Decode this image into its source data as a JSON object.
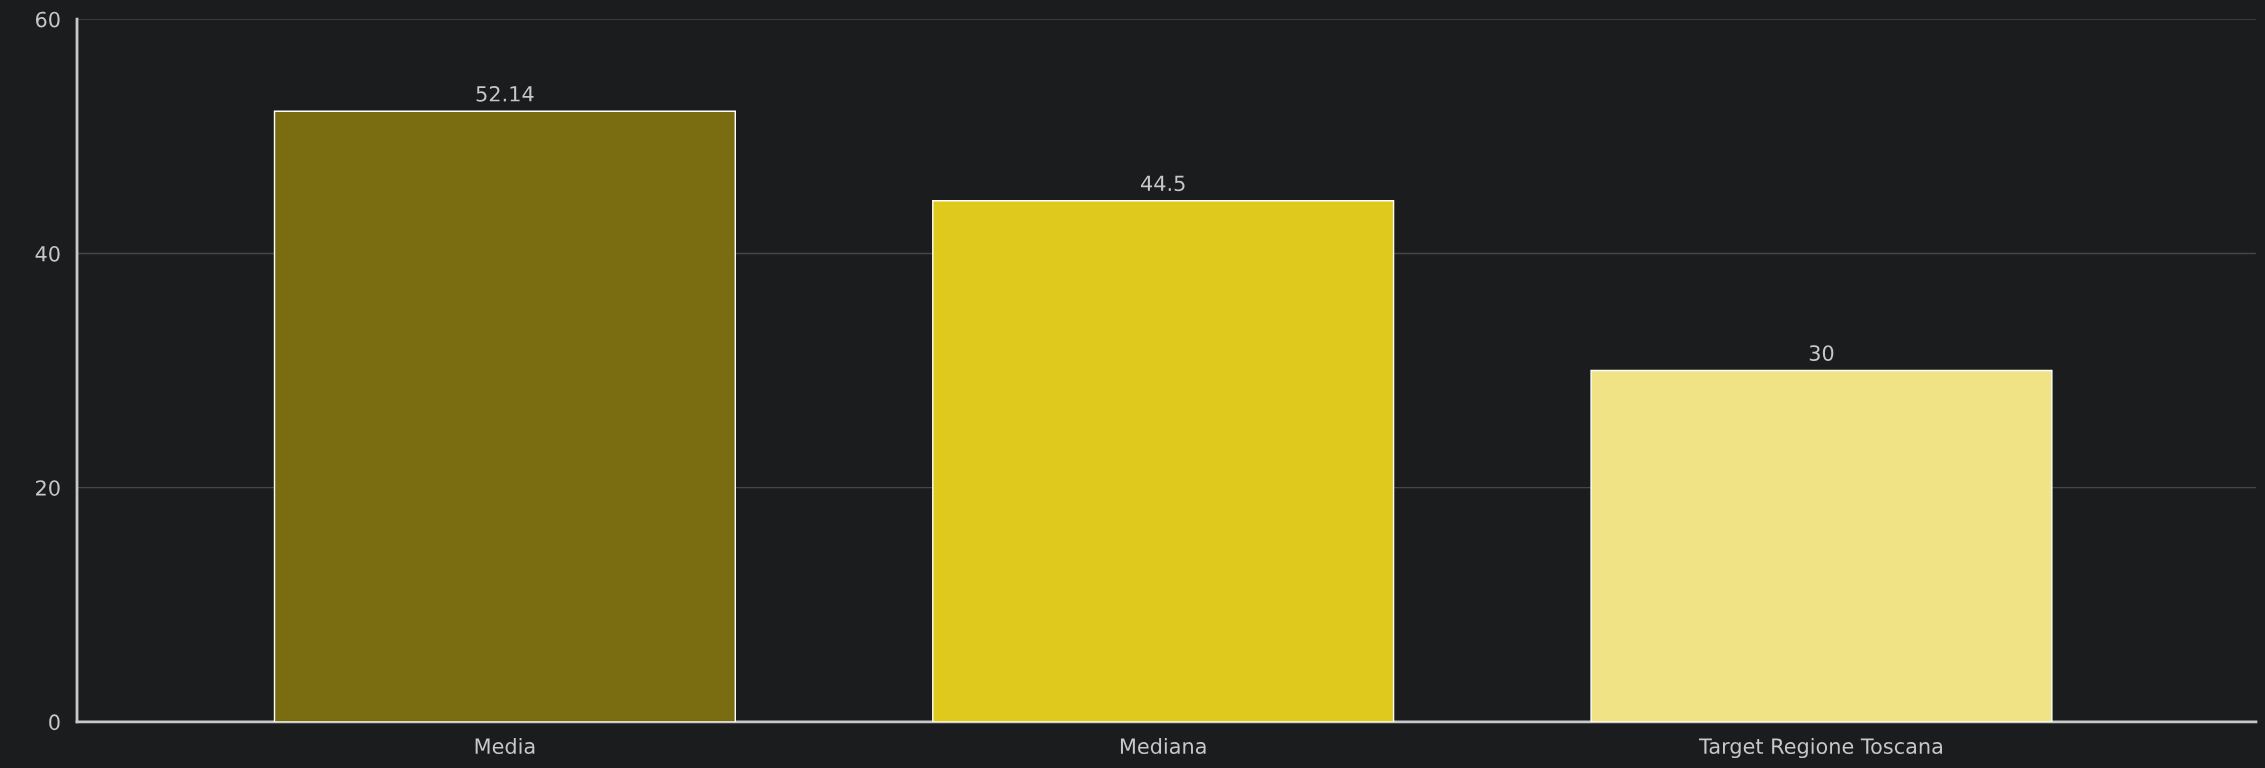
{
  "chart_data": {
    "type": "bar",
    "categories": [
      "Media",
      "Mediana",
      "Target Regione Toscana"
    ],
    "values": [
      52.14,
      44.5,
      30
    ],
    "colors": [
      "#7a6c10",
      "#dfc91d",
      "#f0e385"
    ],
    "ylim": [
      0,
      60
    ],
    "yticks": [
      0,
      20,
      40,
      60
    ],
    "grid": "y",
    "data_labels": true,
    "legend": false
  }
}
